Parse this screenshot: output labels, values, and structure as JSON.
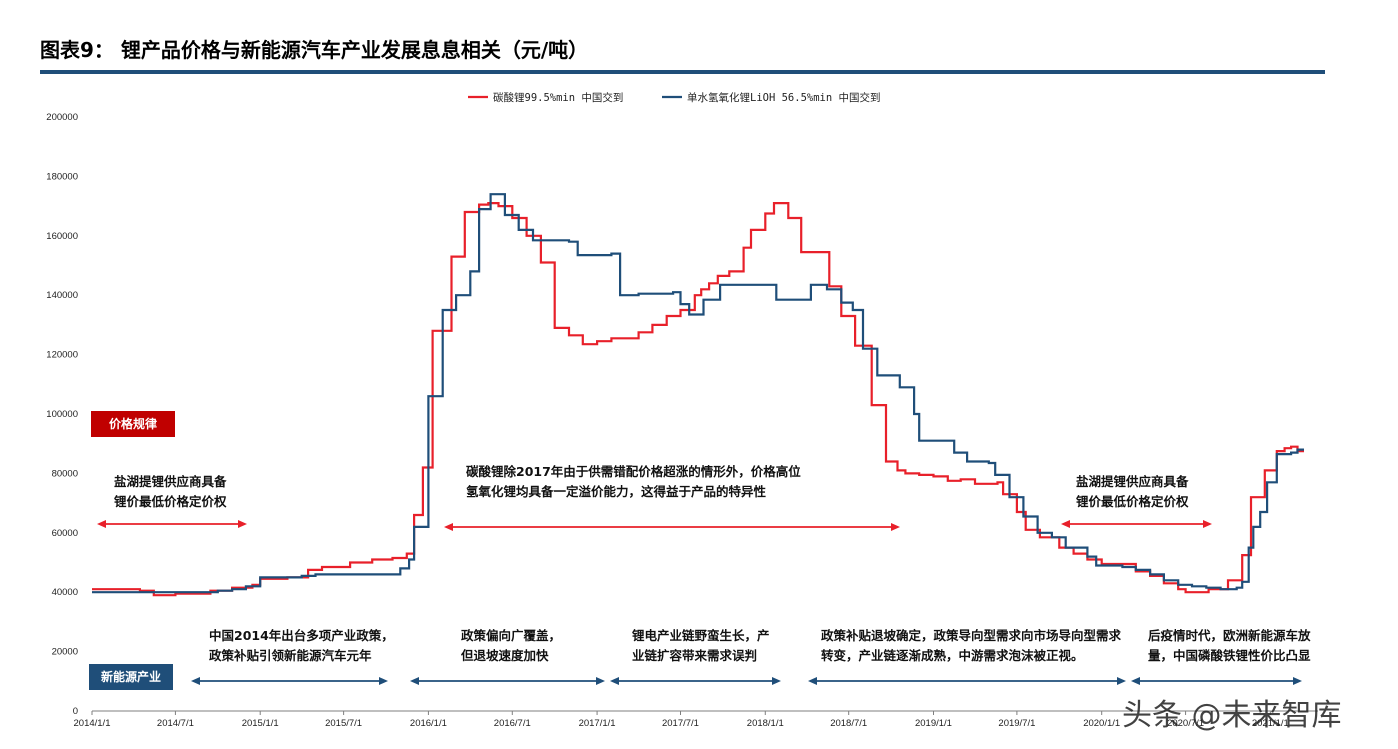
{
  "header": {
    "title": "图表9：  锂产品价格与新能源汽车产业发展息息相关（元/吨）"
  },
  "tags": {
    "price_law": "价格规律",
    "nev_industry": "新能源产业"
  },
  "watermark": "头条 @未来智库",
  "annotations": {
    "price_left_1": "盐湖提锂供应商具备",
    "price_left_2": "锂价最低价格定价权",
    "price_mid_1": "碳酸锂除2017年由于供需错配价格超涨的情形外，价格高位",
    "price_mid_2": "氢氧化锂均具备一定溢价能力，这得益于产品的特异性",
    "price_right_1": "盐湖提锂供应商具备",
    "price_right_2": "锂价最低价格定价权",
    "ind_1a": "中国2014年出台多项产业政策，",
    "ind_1b": "政策补贴引领新能源汽车元年",
    "ind_2a": "政策偏向广覆盖，",
    "ind_2b": "但退坡速度加快",
    "ind_3a": "锂电产业链野蛮生长，产",
    "ind_3b": "业链扩容带来需求误判",
    "ind_4a": "政策补贴退坡确定，政策导向型需求向市场导向型需求",
    "ind_4b": "转变，产业链逐渐成熟，中游需求泡沫被正视。",
    "ind_5a": "后疫情时代，欧洲新能源车放",
    "ind_5b": "量，中国磷酸铁锂性价比凸显"
  },
  "colors": {
    "li2co3": "#E8202A",
    "lioh": "#1F4E79",
    "tag_red": "#C00000",
    "tag_blue": "#1F4E79",
    "rule": "#1F4E79"
  },
  "chart_data": {
    "type": "line",
    "title": "图表9：  锂产品价格与新能源汽车产业发展息息相关（元/吨）",
    "ylim": [
      0,
      200000
    ],
    "yticks": [
      0,
      20000,
      40000,
      60000,
      80000,
      100000,
      120000,
      140000,
      160000,
      180000,
      200000
    ],
    "xlim": [
      "2014-01-01",
      "2021-03-15"
    ],
    "xticks": [
      "2014/1/1",
      "2014/7/1",
      "2015/1/1",
      "2015/7/1",
      "2016/1/1",
      "2016/7/1",
      "2017/1/1",
      "2017/7/1",
      "2018/1/1",
      "2018/7/1",
      "2019/1/1",
      "2019/7/1",
      "2020/1/1",
      "2020/7/1",
      "2021/1/1"
    ],
    "xtick_dates": [
      "2014-01-01",
      "2014-07-01",
      "2015-01-01",
      "2015-07-01",
      "2016-01-01",
      "2016-07-01",
      "2017-01-01",
      "2017-07-01",
      "2018-01-01",
      "2018-07-01",
      "2019-01-01",
      "2019-07-01",
      "2020-01-01",
      "2020-07-01",
      "2021-01-01"
    ],
    "legend_position": "top-center",
    "series": [
      {
        "name": "碳酸锂99.5%min 中国交到",
        "color": "#E8202A",
        "step": true,
        "points": [
          [
            "2014-01-01",
            41000
          ],
          [
            "2014-04-15",
            40500
          ],
          [
            "2014-05-15",
            39000
          ],
          [
            "2014-07-01",
            39500
          ],
          [
            "2014-09-15",
            40500
          ],
          [
            "2014-11-01",
            41500
          ],
          [
            "2014-12-15",
            42500
          ],
          [
            "2015-01-01",
            44500
          ],
          [
            "2015-03-01",
            45000
          ],
          [
            "2015-04-15",
            47500
          ],
          [
            "2015-05-15",
            48500
          ],
          [
            "2015-07-15",
            50000
          ],
          [
            "2015-09-01",
            51000
          ],
          [
            "2015-10-15",
            51500
          ],
          [
            "2015-11-15",
            53000
          ],
          [
            "2015-12-01",
            66000
          ],
          [
            "2015-12-20",
            82000
          ],
          [
            "2016-01-10",
            128000
          ],
          [
            "2016-02-20",
            153000
          ],
          [
            "2016-03-20",
            168000
          ],
          [
            "2016-04-20",
            170500
          ],
          [
            "2016-05-10",
            171000
          ],
          [
            "2016-06-01",
            170000
          ],
          [
            "2016-07-01",
            166000
          ],
          [
            "2016-08-01",
            160000
          ],
          [
            "2016-09-01",
            151000
          ],
          [
            "2016-10-01",
            129000
          ],
          [
            "2016-11-01",
            126500
          ],
          [
            "2016-12-01",
            123500
          ],
          [
            "2017-01-01",
            124500
          ],
          [
            "2017-02-01",
            125500
          ],
          [
            "2017-04-01",
            127500
          ],
          [
            "2017-05-01",
            130000
          ],
          [
            "2017-06-01",
            133000
          ],
          [
            "2017-07-01",
            135000
          ],
          [
            "2017-08-01",
            140000
          ],
          [
            "2017-08-15",
            142000
          ],
          [
            "2017-09-01",
            144000
          ],
          [
            "2017-09-20",
            146500
          ],
          [
            "2017-10-15",
            148000
          ],
          [
            "2017-11-15",
            156000
          ],
          [
            "2017-12-01",
            162000
          ],
          [
            "2018-01-01",
            167500
          ],
          [
            "2018-01-20",
            171000
          ],
          [
            "2018-02-20",
            166000
          ],
          [
            "2018-03-20",
            154500
          ],
          [
            "2018-05-01",
            154500
          ],
          [
            "2018-05-20",
            143000
          ],
          [
            "2018-06-15",
            133000
          ],
          [
            "2018-07-15",
            123000
          ],
          [
            "2018-08-20",
            103000
          ],
          [
            "2018-09-20",
            84000
          ],
          [
            "2018-10-15",
            81000
          ],
          [
            "2018-11-01",
            80000
          ],
          [
            "2018-12-01",
            79500
          ],
          [
            "2019-01-01",
            79000
          ],
          [
            "2019-02-01",
            77500
          ],
          [
            "2019-03-01",
            78000
          ],
          [
            "2019-04-01",
            76500
          ],
          [
            "2019-05-01",
            76500
          ],
          [
            "2019-05-20",
            77000
          ],
          [
            "2019-06-01",
            73000
          ],
          [
            "2019-07-01",
            67000
          ],
          [
            "2019-07-20",
            61000
          ],
          [
            "2019-08-20",
            58500
          ],
          [
            "2019-10-01",
            55000
          ],
          [
            "2019-11-01",
            53000
          ],
          [
            "2019-12-01",
            51000
          ],
          [
            "2020-01-01",
            49500
          ],
          [
            "2020-02-15",
            49500
          ],
          [
            "2020-03-15",
            47000
          ],
          [
            "2020-04-15",
            45500
          ],
          [
            "2020-05-15",
            43000
          ],
          [
            "2020-06-15",
            41000
          ],
          [
            "2020-07-01",
            40000
          ],
          [
            "2020-08-01",
            40000
          ],
          [
            "2020-08-20",
            41000
          ],
          [
            "2020-10-01",
            44000
          ],
          [
            "2020-11-01",
            52500
          ],
          [
            "2020-11-20",
            72000
          ],
          [
            "2020-12-20",
            81000
          ],
          [
            "2021-01-15",
            87500
          ],
          [
            "2021-02-01",
            88500
          ],
          [
            "2021-02-15",
            89000
          ],
          [
            "2021-03-01",
            87500
          ],
          [
            "2021-03-15",
            87500
          ]
        ]
      },
      {
        "name": "单水氢氧化锂LiOH 56.5%min 中国交到",
        "color": "#1F4E79",
        "step": true,
        "points": [
          [
            "2014-01-01",
            40000
          ],
          [
            "2014-09-01",
            40000
          ],
          [
            "2014-10-01",
            40500
          ],
          [
            "2014-11-01",
            41000
          ],
          [
            "2014-12-01",
            42000
          ],
          [
            "2015-01-01",
            45000
          ],
          [
            "2015-04-01",
            45500
          ],
          [
            "2015-05-01",
            46000
          ],
          [
            "2015-07-01",
            46000
          ],
          [
            "2015-11-01",
            48000
          ],
          [
            "2015-11-20",
            51000
          ],
          [
            "2015-12-01",
            62000
          ],
          [
            "2016-01-01",
            106000
          ],
          [
            "2016-02-01",
            135000
          ],
          [
            "2016-03-01",
            140000
          ],
          [
            "2016-04-01",
            148000
          ],
          [
            "2016-04-20",
            169000
          ],
          [
            "2016-05-15",
            174000
          ],
          [
            "2016-06-15",
            167000
          ],
          [
            "2016-07-15",
            162000
          ],
          [
            "2016-08-15",
            158500
          ],
          [
            "2016-11-01",
            158000
          ],
          [
            "2016-11-20",
            153500
          ],
          [
            "2017-02-01",
            154000
          ],
          [
            "2017-02-20",
            140000
          ],
          [
            "2017-04-01",
            140500
          ],
          [
            "2017-06-15",
            141000
          ],
          [
            "2017-07-01",
            137000
          ],
          [
            "2017-07-20",
            133500
          ],
          [
            "2017-08-20",
            138500
          ],
          [
            "2017-09-25",
            143500
          ],
          [
            "2018-01-25",
            138500
          ],
          [
            "2018-03-15",
            138500
          ],
          [
            "2018-04-10",
            143500
          ],
          [
            "2018-05-15",
            142000
          ],
          [
            "2018-06-15",
            137500
          ],
          [
            "2018-07-10",
            135000
          ],
          [
            "2018-08-01",
            122000
          ],
          [
            "2018-09-01",
            113000
          ],
          [
            "2018-10-01",
            113000
          ],
          [
            "2018-10-20",
            109000
          ],
          [
            "2018-11-20",
            100000
          ],
          [
            "2018-12-01",
            91000
          ],
          [
            "2019-01-01",
            91000
          ],
          [
            "2019-02-15",
            87000
          ],
          [
            "2019-03-15",
            84000
          ],
          [
            "2019-05-01",
            83500
          ],
          [
            "2019-05-15",
            79500
          ],
          [
            "2019-06-15",
            72000
          ],
          [
            "2019-07-15",
            65500
          ],
          [
            "2019-08-15",
            60000
          ],
          [
            "2019-09-15",
            58500
          ],
          [
            "2019-10-15",
            55000
          ],
          [
            "2019-12-01",
            52000
          ],
          [
            "2019-12-20",
            49000
          ],
          [
            "2020-01-15",
            49000
          ],
          [
            "2020-02-15",
            48500
          ],
          [
            "2020-03-15",
            47500
          ],
          [
            "2020-04-15",
            46000
          ],
          [
            "2020-05-15",
            44000
          ],
          [
            "2020-06-15",
            42500
          ],
          [
            "2020-07-15",
            42000
          ],
          [
            "2020-08-15",
            41500
          ],
          [
            "2020-09-15",
            41000
          ],
          [
            "2020-10-20",
            41500
          ],
          [
            "2020-11-01",
            43500
          ],
          [
            "2020-11-15",
            55000
          ],
          [
            "2020-11-25",
            62000
          ],
          [
            "2020-12-10",
            67000
          ],
          [
            "2020-12-25",
            77000
          ],
          [
            "2021-01-15",
            86500
          ],
          [
            "2021-02-15",
            87000
          ],
          [
            "2021-03-01",
            88000
          ],
          [
            "2021-03-15",
            88000
          ]
        ]
      }
    ]
  }
}
